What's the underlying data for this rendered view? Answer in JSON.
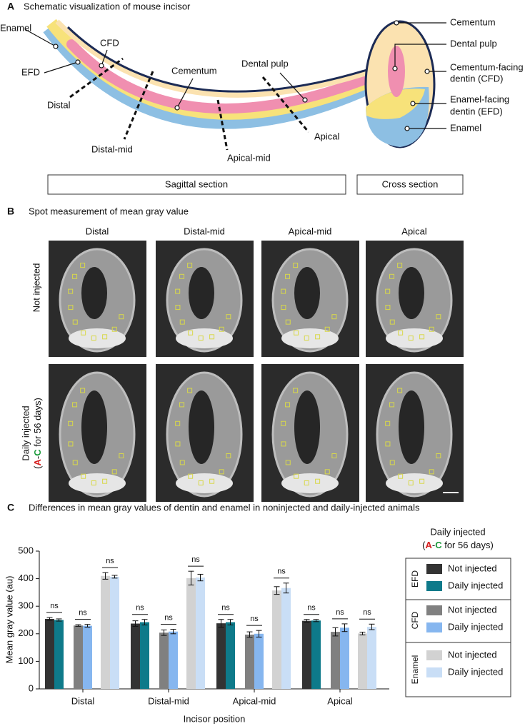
{
  "panel_a": {
    "letter": "A",
    "title": "Schematic visualization of mouse incisor",
    "sagittal": {
      "enamel": "Enamel",
      "efd": "EFD",
      "cfd": "CFD",
      "distal": "Distal",
      "cementum": "Cementum",
      "dental_pulp": "Dental pulp",
      "distal_mid": "Distal-mid",
      "apical_mid": "Apical-mid",
      "apical": "Apical"
    },
    "cross": {
      "cementum": "Cementum",
      "dental_pulp": "Dental pulp",
      "cfd": [
        "Cementum-facing",
        "dentin (CFD)"
      ],
      "efd": [
        "Enamel-facing",
        "dentin (EFD)"
      ],
      "enamel": "Enamel"
    },
    "sagittal_box": "Sagittal section",
    "cross_box": "Cross section"
  },
  "panel_b": {
    "letter": "B",
    "title": "Spot measurement of mean gray value",
    "columns": [
      "Distal",
      "Distal-mid",
      "Apical-mid",
      "Apical"
    ],
    "row_1": "Not injected",
    "row_2": "Daily injected",
    "row_2_note": [
      "(",
      "A",
      "-",
      "C",
      " for 56 days)"
    ]
  },
  "chart_data": {
    "type": "bar",
    "letter": "C",
    "title": "Differences in mean gray values of dentin and enamel in noninjected and daily-injected animals",
    "y_label": "Mean gray value (au)",
    "x_label": "Incisor position",
    "categories": [
      "Distal",
      "Distal-mid",
      "Apical-mid",
      "Apical"
    ],
    "ylim": [
      0,
      500
    ],
    "yticks": [
      0,
      100,
      200,
      300,
      400,
      500
    ],
    "series": [
      {
        "name": "Not injected",
        "color": "#333333",
        "values": [
          254,
          237,
          238,
          247
        ],
        "errors": [
          5,
          10,
          14,
          5
        ]
      },
      {
        "name": "Daily injected",
        "color": "#0e7a8a",
        "values": [
          250,
          242,
          242,
          248
        ],
        "errors": [
          4,
          10,
          10,
          4
        ]
      },
      {
        "name": "Not injected",
        "color": "#808080",
        "values": [
          230,
          204,
          197,
          207
        ],
        "errors": [
          3,
          10,
          10,
          15
        ]
      },
      {
        "name": "Daily injected",
        "color": "#86b6ef",
        "values": [
          229,
          208,
          200,
          222
        ],
        "errors": [
          5,
          8,
          12,
          14
        ]
      },
      {
        "name": "Not injected",
        "color": "#d2d2d2",
        "values": [
          410,
          402,
          357,
          201
        ],
        "errors": [
          12,
          25,
          14,
          5
        ]
      },
      {
        "name": "Daily injected",
        "color": "#c9def6",
        "values": [
          407,
          404,
          366,
          225
        ],
        "errors": [
          5,
          12,
          18,
          10
        ]
      }
    ],
    "significance": [
      [
        "ns",
        "ns",
        "ns"
      ],
      [
        "ns",
        "ns",
        "ns"
      ],
      [
        "ns",
        "ns",
        "ns"
      ],
      [
        "ns",
        "ns",
        "ns"
      ]
    ],
    "legend_title": "Daily injected",
    "legend_note": [
      "(",
      "A",
      "-",
      "C",
      " for 56 days)"
    ],
    "legend_groups": [
      "EFD",
      "CFD",
      "Enamel"
    ]
  }
}
